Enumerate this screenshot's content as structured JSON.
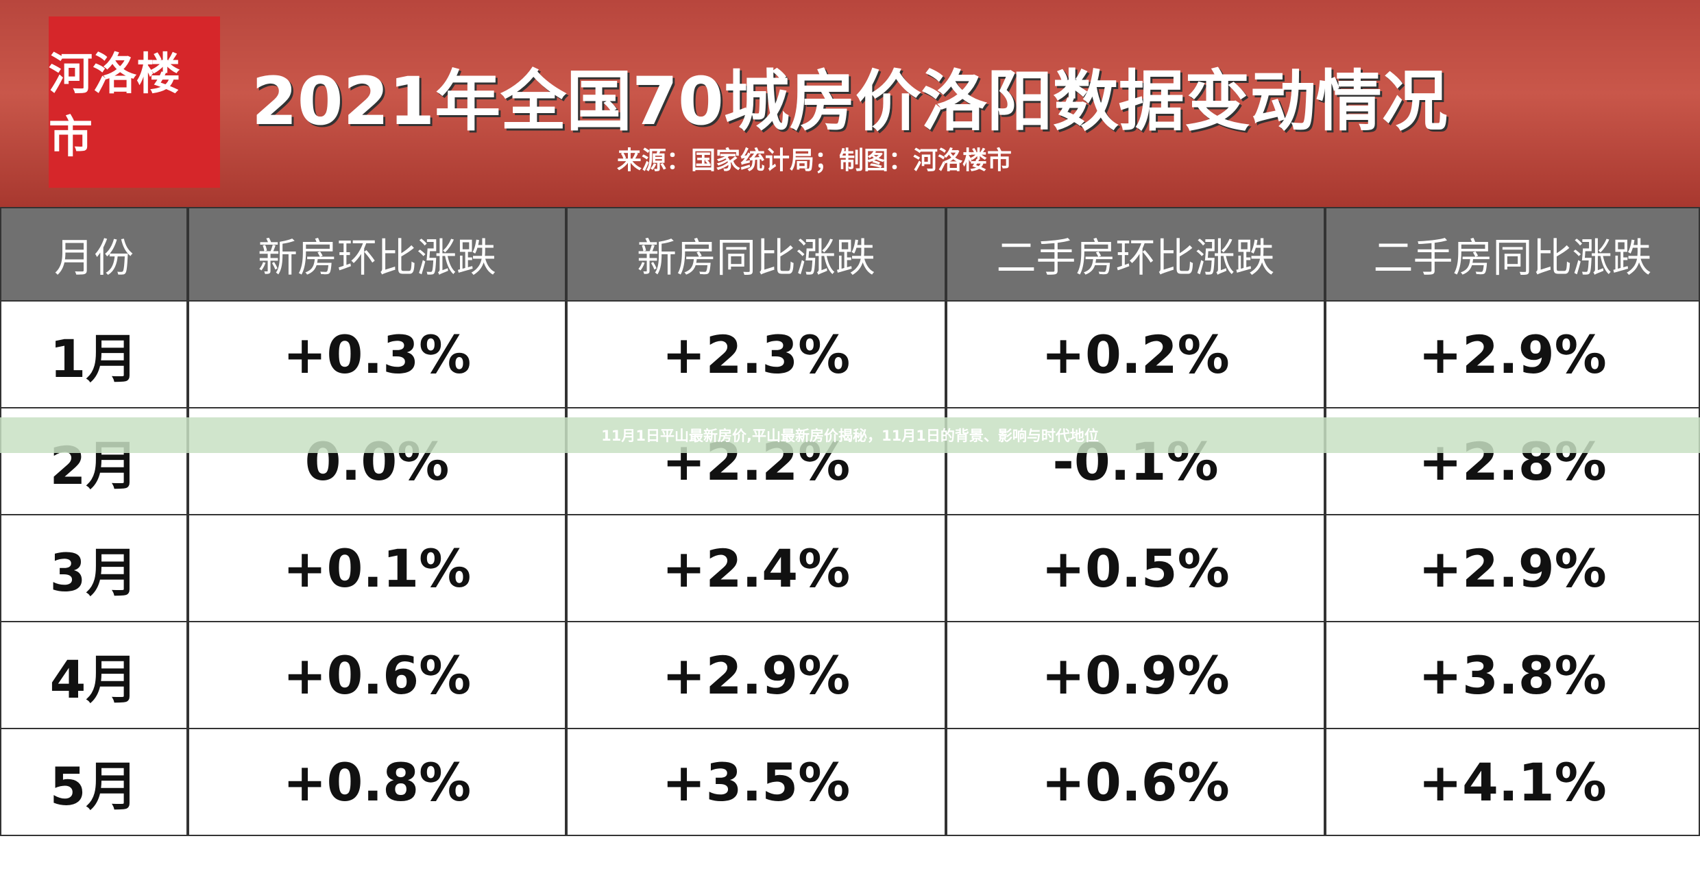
{
  "header": {
    "logo": "河洛楼市",
    "title": "2021年全国70城房价洛阳数据变动情况",
    "source": "来源：国家统计局；制图：河洛楼市"
  },
  "banner": "11月1日平山最新房价,平山最新房价揭秘，11月1日的背景、影响与时代地位",
  "table": {
    "columns": [
      "月份",
      "新房环比涨跌",
      "新房同比涨跌",
      "二手房环比涨跌",
      "二手房同比涨跌"
    ],
    "rows": [
      [
        "1月",
        "+0.3%",
        "+2.3%",
        "+0.2%",
        "+2.9%"
      ],
      [
        "2月",
        "0.0%",
        "+2.2%",
        "-0.1%",
        "+2.8%"
      ],
      [
        "3月",
        "+0.1%",
        "+2.4%",
        "+0.5%",
        "+2.9%"
      ],
      [
        "4月",
        "+0.6%",
        "+2.9%",
        "+0.9%",
        "+3.8%"
      ],
      [
        "5月",
        "+0.8%",
        "+3.5%",
        "+0.6%",
        "+4.1%"
      ]
    ]
  }
}
